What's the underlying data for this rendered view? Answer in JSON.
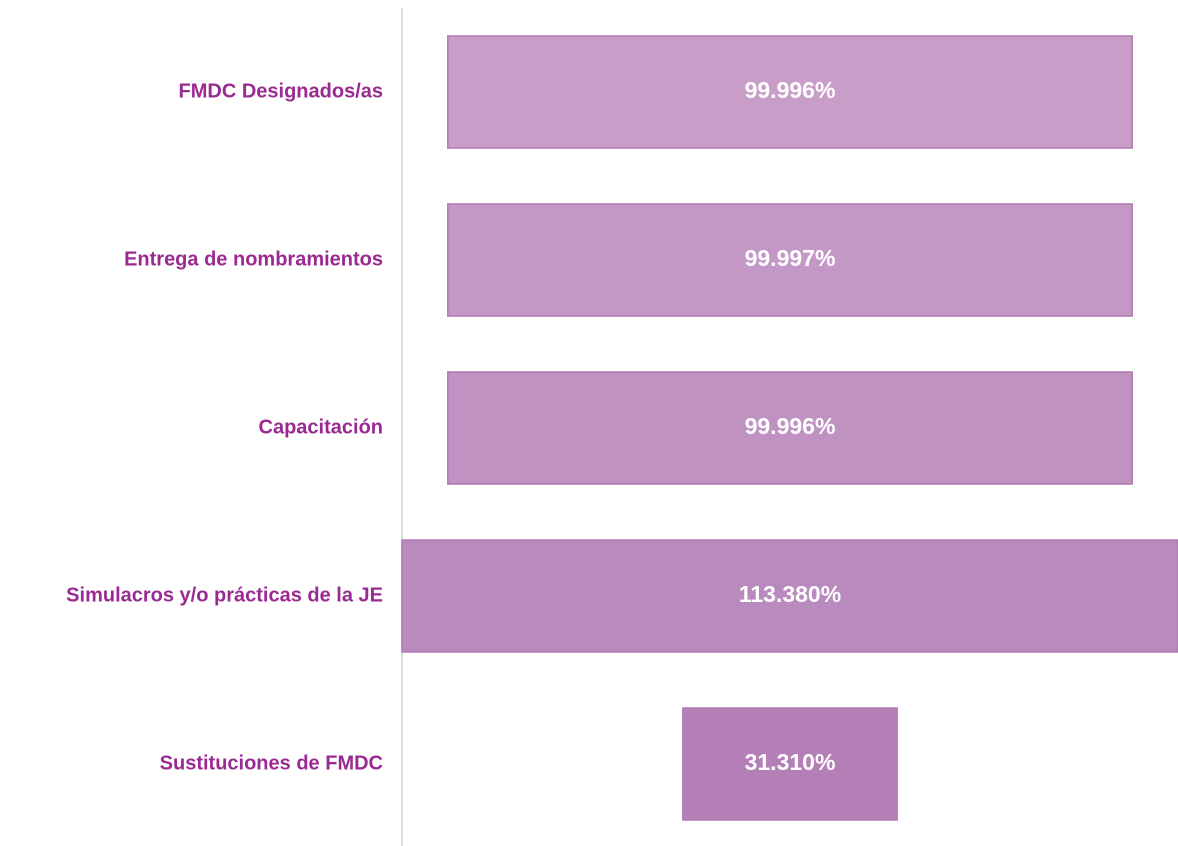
{
  "chart_data": {
    "type": "funnel",
    "categories": [
      "FMDC Designados/as",
      "Entrega de nombramientos",
      "Capacitación",
      "Simulacros y/o prácticas de la JE",
      "Sustituciones de FMDC"
    ],
    "values": [
      99.996,
      99.997,
      99.996,
      113.38,
      31.31
    ],
    "value_labels": [
      "99.996%",
      "99.997%",
      "99.996%",
      "113.380%",
      "31.310%"
    ],
    "colors": [
      "#c89ec9",
      "#c498c6",
      "#bf92c2",
      "#b98abd",
      "#b47fb6"
    ]
  }
}
